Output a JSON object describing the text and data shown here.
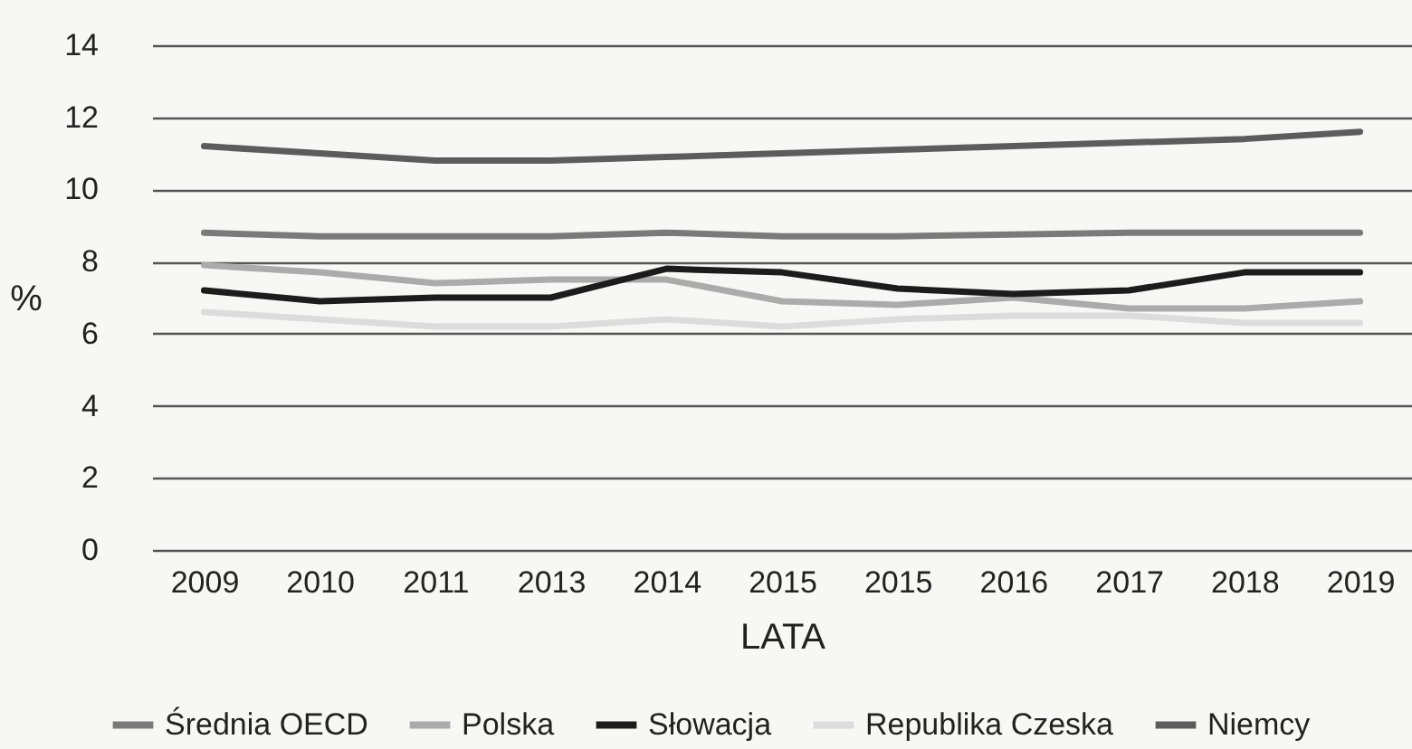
{
  "chart_data": {
    "type": "line",
    "xlabel": "LATA",
    "ylabel": "%",
    "categories": [
      "2009",
      "2010",
      "2011",
      "2013",
      "2014",
      "2015",
      "2015",
      "2016",
      "2017",
      "2018",
      "2019"
    ],
    "series": [
      {
        "name": "Średnia OECD",
        "color": "#7a7a7a",
        "values": [
          8.8,
          8.7,
          8.7,
          8.7,
          8.8,
          8.7,
          8.7,
          8.75,
          8.8,
          8.8,
          8.8
        ]
      },
      {
        "name": "Polska",
        "color": "#ababab",
        "values": [
          7.9,
          7.7,
          7.4,
          7.5,
          7.5,
          6.9,
          6.8,
          7.0,
          6.7,
          6.7,
          6.9
        ]
      },
      {
        "name": "Słowacja",
        "color": "#1c1c1c",
        "values": [
          7.2,
          6.9,
          7.0,
          7.0,
          7.8,
          7.7,
          7.25,
          7.1,
          7.2,
          7.7,
          7.7
        ]
      },
      {
        "name": "Republika Czeska",
        "color": "#dcdcdc",
        "values": [
          6.6,
          6.4,
          6.2,
          6.2,
          6.4,
          6.2,
          6.4,
          6.5,
          6.5,
          6.3,
          6.3
        ]
      },
      {
        "name": "Niemcy",
        "color": "#5c5c5c",
        "values": [
          11.2,
          11.0,
          10.8,
          10.8,
          10.9,
          11.0,
          11.1,
          11.2,
          11.3,
          11.4,
          11.6
        ]
      }
    ],
    "ylim": [
      0,
      14
    ],
    "yticks": [
      0,
      2,
      4,
      6,
      8,
      10,
      12,
      14
    ],
    "grid": "y",
    "legend": "bottom",
    "marker": "none",
    "line_style": "solid"
  }
}
